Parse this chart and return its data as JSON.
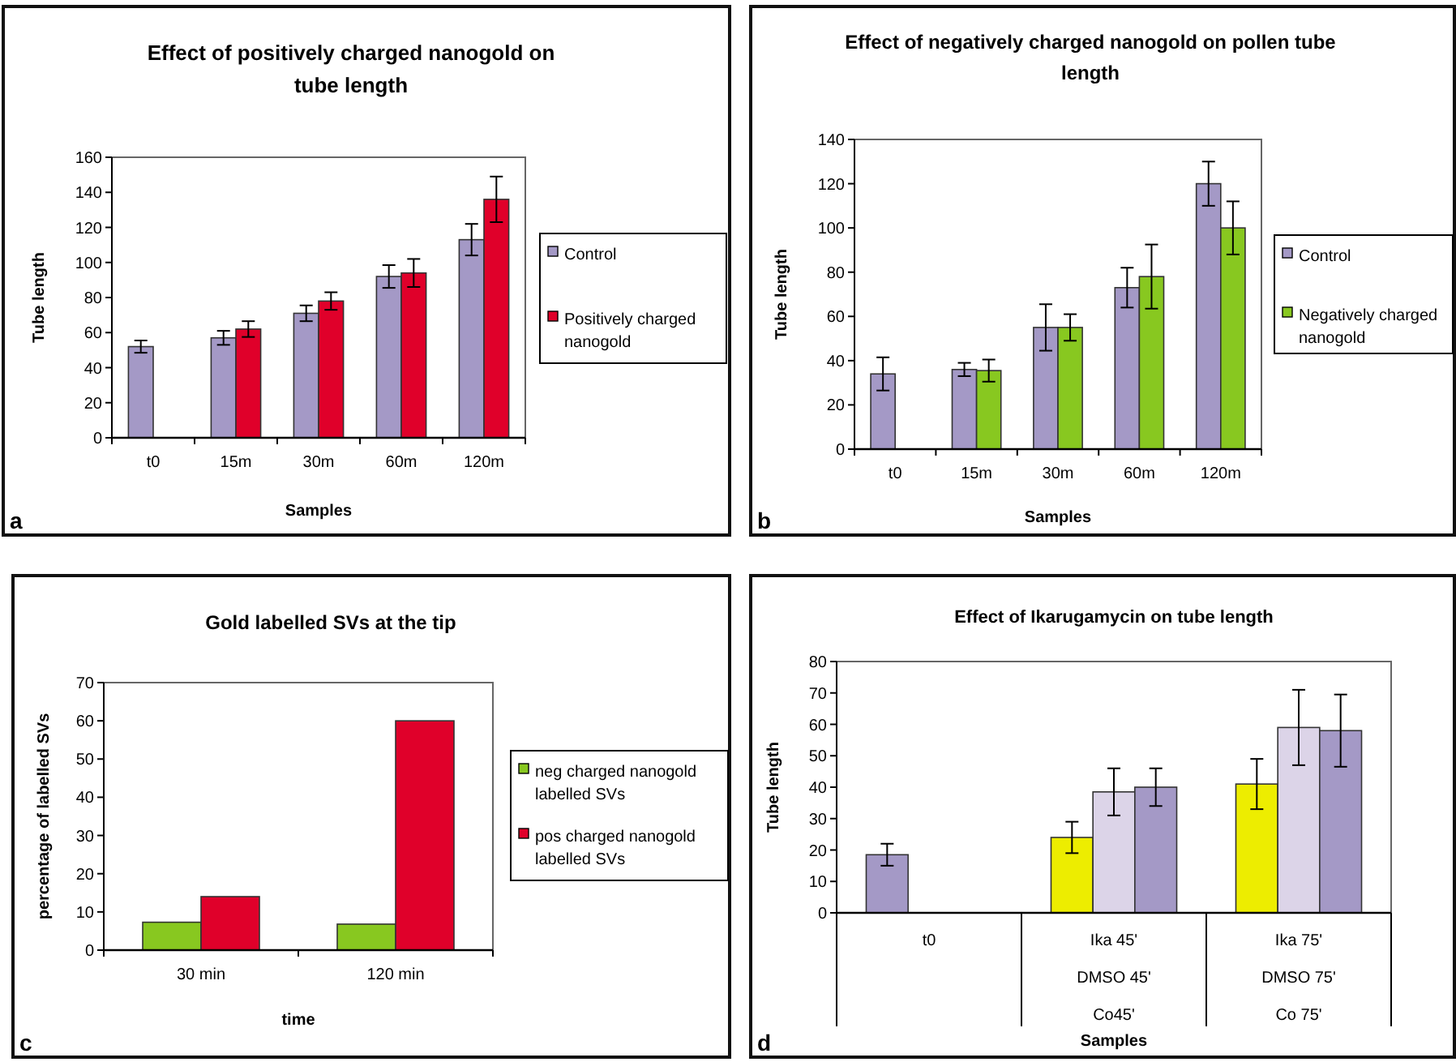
{
  "chart_data": [
    {
      "type": "bar",
      "title": "Effect of positively charged nanogold on tube length",
      "xlabel": "Samples",
      "ylabel": "Tube length",
      "categories": [
        "t0",
        "15m",
        "30m",
        "60m",
        "120m"
      ],
      "ylim": [
        0,
        160
      ],
      "yticks": [
        0,
        20,
        40,
        60,
        80,
        100,
        120,
        140,
        160
      ],
      "legend": "right",
      "grid": false,
      "annotations": [
        "a"
      ],
      "series": [
        {
          "name": "Control",
          "color": "#a499c6",
          "values": [
            52,
            57,
            71,
            92,
            113
          ],
          "errors": [
            3.5,
            4,
            4.5,
            6.5,
            9
          ]
        },
        {
          "name": "Positively charged nanogold",
          "color": "#e0002a",
          "values": [
            null,
            62,
            78,
            94,
            136
          ],
          "errors": [
            null,
            4.5,
            5,
            8,
            13
          ]
        }
      ]
    },
    {
      "type": "bar",
      "title": "Effect of negatively charged nanogold on pollen tube length",
      "xlabel": "Samples",
      "ylabel": "Tube length",
      "categories": [
        "t0",
        "15m",
        "30m",
        "60m",
        "120m"
      ],
      "ylim": [
        0,
        140
      ],
      "yticks": [
        0,
        20,
        40,
        60,
        80,
        100,
        120,
        140
      ],
      "legend": "right",
      "grid": false,
      "annotations": [
        "b"
      ],
      "series": [
        {
          "name": "Control",
          "color": "#a499c6",
          "values": [
            34,
            36,
            55,
            73,
            120
          ],
          "errors": [
            7.5,
            3,
            10.5,
            9,
            10
          ]
        },
        {
          "name": "Negatively charged nanogold",
          "color": "#88c820",
          "values": [
            null,
            35.5,
            55,
            78,
            100
          ],
          "errors": [
            null,
            5,
            6,
            14.5,
            12
          ]
        }
      ]
    },
    {
      "type": "bar",
      "title": "Gold labelled SVs at the tip",
      "xlabel": "time",
      "ylabel": "percentage of labelled SVs",
      "categories": [
        "30 min",
        "120 min"
      ],
      "ylim": [
        0,
        70
      ],
      "yticks": [
        0,
        10,
        20,
        30,
        40,
        50,
        60,
        70
      ],
      "legend": "right",
      "grid": false,
      "annotations": [
        "c"
      ],
      "series": [
        {
          "name": "neg charged nanogold labelled SVs",
          "color": "#88c820",
          "values": [
            7.3,
            6.8
          ]
        },
        {
          "name": "pos charged nanogold labelled SVs",
          "color": "#e0002a",
          "values": [
            14,
            60
          ]
        }
      ]
    },
    {
      "type": "bar",
      "title": "Effect of Ikarugamycin on tube length",
      "xlabel": "Samples",
      "ylabel": "Tube length",
      "categories": [
        "t0",
        "Ika 45'\nDMSO 45'\nCo45'",
        "Ika 75'\nDMSO 75'\nCo 75'"
      ],
      "ylim": [
        0,
        80
      ],
      "yticks": [
        0,
        10,
        20,
        30,
        40,
        50,
        60,
        70,
        80
      ],
      "grid": false,
      "annotations": [
        "d"
      ],
      "series": [
        {
          "colors": [
            "#a499c6",
            "#eded00",
            "#eded00"
          ],
          "values": [
            18.5,
            24,
            41
          ],
          "errors": [
            3.5,
            5,
            8
          ]
        },
        {
          "color": "#dcd4e8",
          "values": [
            null,
            38.5,
            59
          ],
          "errors": [
            null,
            7.5,
            12
          ]
        },
        {
          "color": "#a499c6",
          "values": [
            null,
            40,
            58
          ],
          "errors": [
            null,
            6,
            11.5
          ]
        }
      ]
    }
  ]
}
